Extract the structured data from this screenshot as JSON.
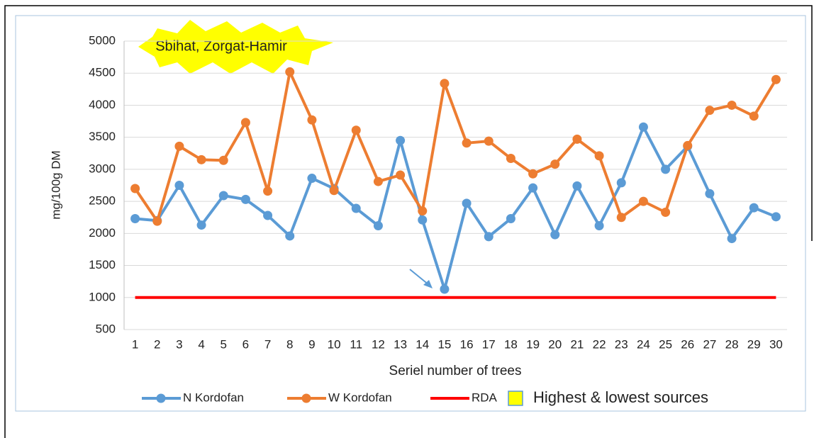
{
  "chart_data": {
    "type": "line",
    "annotation": "Sbihat, Zorgat-Hamir",
    "x_label": "Seriel number of trees",
    "y_label": "mg/100g DM",
    "categories": [
      1,
      2,
      3,
      4,
      5,
      6,
      7,
      8,
      9,
      10,
      11,
      12,
      13,
      14,
      15,
      16,
      17,
      18,
      19,
      20,
      21,
      22,
      23,
      24,
      25,
      26,
      27,
      28,
      29,
      30
    ],
    "series": [
      {
        "name": "N Kordofan",
        "color": "#5b9bd5",
        "markers": true,
        "values": [
          2230,
          2200,
          2750,
          2130,
          2590,
          2530,
          2280,
          1960,
          2860,
          2700,
          2390,
          2120,
          3450,
          2210,
          1130,
          2470,
          1950,
          2230,
          2710,
          1980,
          2740,
          2120,
          2790,
          3660,
          3000,
          3360,
          2620,
          1920,
          2400,
          2260
        ]
      },
      {
        "name": "W Kordofan",
        "color": "#ed7d31",
        "markers": true,
        "values": [
          2700,
          2190,
          3360,
          3150,
          3140,
          3730,
          2660,
          4520,
          3770,
          2670,
          3610,
          2810,
          2910,
          2350,
          4340,
          3410,
          3440,
          3170,
          2930,
          3080,
          3470,
          3210,
          2250,
          2500,
          2330,
          3370,
          3920,
          4000,
          3830,
          4400
        ]
      },
      {
        "name": "RDA",
        "color": "#ff0000",
        "markers": false,
        "values": [
          1000,
          1000,
          1000,
          1000,
          1000,
          1000,
          1000,
          1000,
          1000,
          1000,
          1000,
          1000,
          1000,
          1000,
          1000,
          1000,
          1000,
          1000,
          1000,
          1000,
          1000,
          1000,
          1000,
          1000,
          1000,
          1000,
          1000,
          1000,
          1000,
          1000
        ]
      }
    ],
    "highlight_legend": {
      "name": "Highest & lowest sources",
      "color": "#ffff00"
    },
    "ylim": [
      500,
      5000
    ],
    "yticks": [
      500,
      1000,
      1500,
      2000,
      2500,
      3000,
      3500,
      4000,
      4500,
      5000
    ],
    "grid": true
  }
}
